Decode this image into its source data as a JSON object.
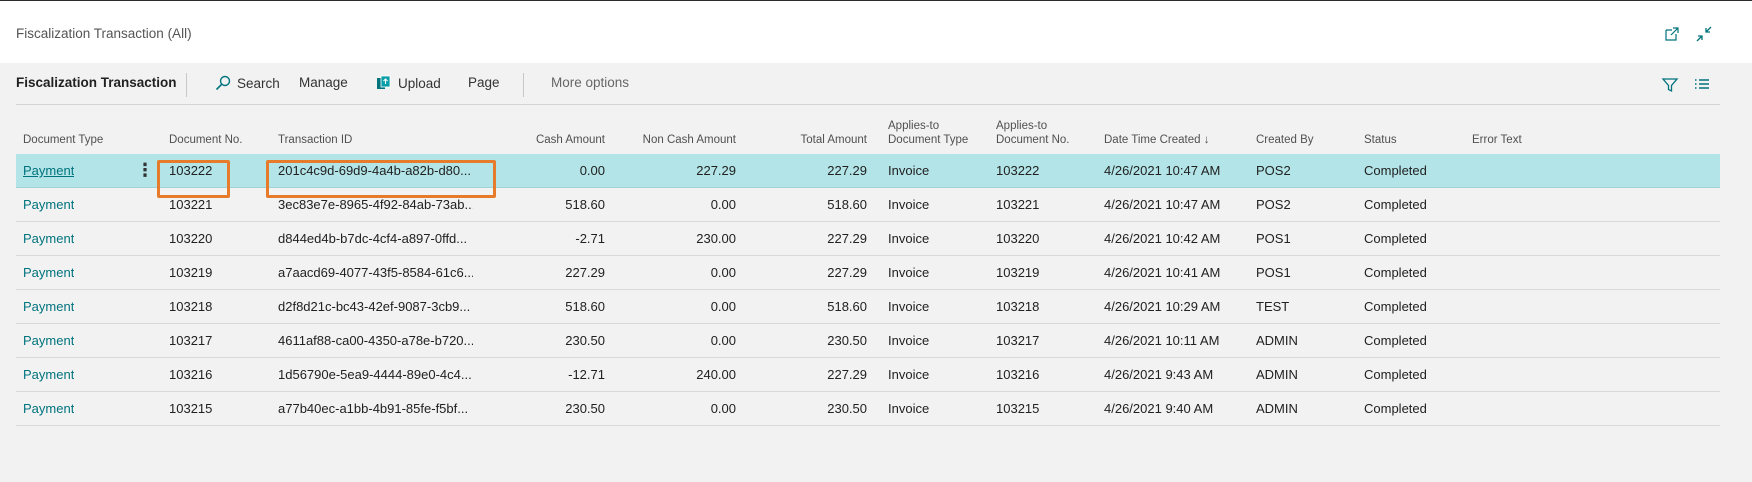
{
  "window": {
    "title": "Fiscalization Transaction (All)"
  },
  "toolbar": {
    "page_name": "Fiscalization Transaction",
    "search": "Search",
    "manage": "Manage",
    "upload": "Upload",
    "page": "Page",
    "more_options": "More options",
    "icons": [
      "search-icon",
      "upload-icon",
      "filter-icon",
      "list-icon",
      "open-new-window-icon",
      "collapse-icon"
    ]
  },
  "columns": {
    "document_type": "Document Type",
    "document_no": "Document No.",
    "transaction_id": "Transaction ID",
    "cash_amount": "Cash Amount",
    "non_cash_amount": "Non Cash Amount",
    "total_amount": "Total Amount",
    "applies_doc_type_1": "Applies-to",
    "applies_doc_type_2": "Document Type",
    "applies_doc_no_1": "Applies-to",
    "applies_doc_no_2": "Document No.",
    "date_time_created": "Date Time Created",
    "sort_arrow": "↓",
    "created_by": "Created By",
    "status": "Status",
    "error_text": "Error Text"
  },
  "rows": [
    {
      "document_type": "Payment",
      "document_no": "103222",
      "transaction_id": "201c4c9d-69d9-4a4b-a82b-d80...",
      "cash_amount": "0.00",
      "non_cash_amount": "227.29",
      "total_amount": "227.29",
      "applies_doc_type": "Invoice",
      "applies_doc_no": "103222",
      "date_time_created": "4/26/2021 10:47 AM",
      "created_by": "POS2",
      "status": "Completed",
      "error_text": ""
    },
    {
      "document_type": "Payment",
      "document_no": "103221",
      "transaction_id": "3ec83e7e-8965-4f92-84ab-73ab...",
      "cash_amount": "518.60",
      "non_cash_amount": "0.00",
      "total_amount": "518.60",
      "applies_doc_type": "Invoice",
      "applies_doc_no": "103221",
      "date_time_created": "4/26/2021 10:47 AM",
      "created_by": "POS2",
      "status": "Completed",
      "error_text": ""
    },
    {
      "document_type": "Payment",
      "document_no": "103220",
      "transaction_id": "d844ed4b-b7dc-4cf4-a897-0ffd...",
      "cash_amount": "-2.71",
      "non_cash_amount": "230.00",
      "total_amount": "227.29",
      "applies_doc_type": "Invoice",
      "applies_doc_no": "103220",
      "date_time_created": "4/26/2021 10:42 AM",
      "created_by": "POS1",
      "status": "Completed",
      "error_text": ""
    },
    {
      "document_type": "Payment",
      "document_no": "103219",
      "transaction_id": "a7aacd69-4077-43f5-8584-61c6...",
      "cash_amount": "227.29",
      "non_cash_amount": "0.00",
      "total_amount": "227.29",
      "applies_doc_type": "Invoice",
      "applies_doc_no": "103219",
      "date_time_created": "4/26/2021 10:41 AM",
      "created_by": "POS1",
      "status": "Completed",
      "error_text": ""
    },
    {
      "document_type": "Payment",
      "document_no": "103218",
      "transaction_id": "d2f8d21c-bc43-42ef-9087-3cb9...",
      "cash_amount": "518.60",
      "non_cash_amount": "0.00",
      "total_amount": "518.60",
      "applies_doc_type": "Invoice",
      "applies_doc_no": "103218",
      "date_time_created": "4/26/2021 10:29 AM",
      "created_by": "TEST",
      "status": "Completed",
      "error_text": ""
    },
    {
      "document_type": "Payment",
      "document_no": "103217",
      "transaction_id": "4611af88-ca00-4350-a78e-b720...",
      "cash_amount": "230.50",
      "non_cash_amount": "0.00",
      "total_amount": "230.50",
      "applies_doc_type": "Invoice",
      "applies_doc_no": "103217",
      "date_time_created": "4/26/2021 10:11 AM",
      "created_by": "ADMIN",
      "status": "Completed",
      "error_text": ""
    },
    {
      "document_type": "Payment",
      "document_no": "103216",
      "transaction_id": "1d56790e-5ea9-4444-89e0-4c4...",
      "cash_amount": "-12.71",
      "non_cash_amount": "240.00",
      "total_amount": "227.29",
      "applies_doc_type": "Invoice",
      "applies_doc_no": "103216",
      "date_time_created": "4/26/2021 9:43 AM",
      "created_by": "ADMIN",
      "status": "Completed",
      "error_text": ""
    },
    {
      "document_type": "Payment",
      "document_no": "103215",
      "transaction_id": "a77b40ec-a1bb-4b91-85fe-f5bf...",
      "cash_amount": "230.50",
      "non_cash_amount": "0.00",
      "total_amount": "230.50",
      "applies_doc_type": "Invoice",
      "applies_doc_no": "103215",
      "date_time_created": "4/26/2021 9:40 AM",
      "created_by": "ADMIN",
      "status": "Completed",
      "error_text": ""
    }
  ],
  "colors": {
    "accent": "#00737d",
    "selected_row": "#b3e5e8",
    "highlight_box": "#e57b2b"
  }
}
